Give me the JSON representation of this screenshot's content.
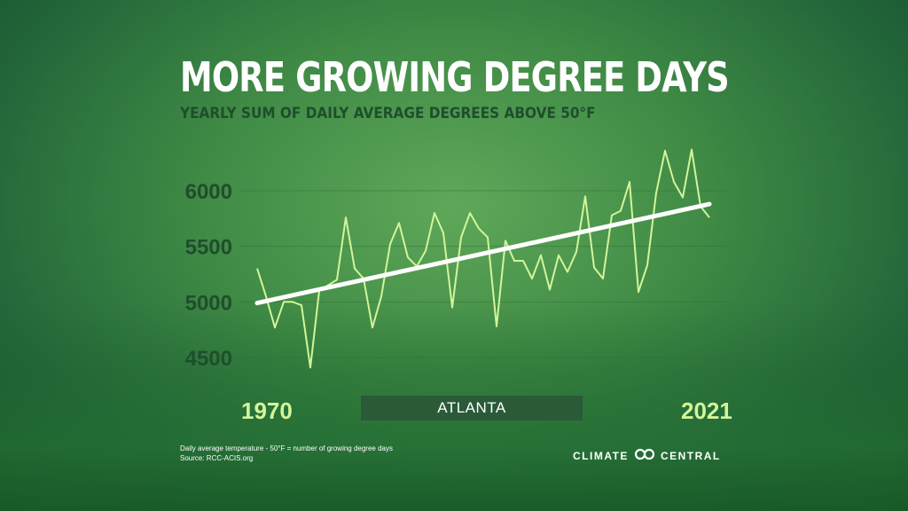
{
  "title": "MORE GROWING DEGREE DAYS",
  "subtitle": "YEARLY SUM OF DAILY AVERAGE DEGREES ABOVE 50°F",
  "location": "ATLANTA",
  "footnote": {
    "line1": "Daily average temperature - 50°F = number of growing degree days",
    "line2": "Source: RCC-ACIS.org"
  },
  "brand": {
    "word1": "CLIMATE",
    "word2": "CENTRAL",
    "icon": "climate-central-logo-icon"
  },
  "colors": {
    "line": "#d3f59a",
    "trend": "#ffffff",
    "axis_text": "#1f4e2c",
    "year_text": "#d3f59a"
  },
  "chart_data": {
    "type": "line",
    "xlim": [
      1970,
      2021
    ],
    "ylim": [
      4400,
      6400
    ],
    "yticks": [
      4500,
      5000,
      5500,
      6000
    ],
    "ytick_labels": [
      "4500",
      "5000",
      "5500",
      "6000"
    ],
    "x_start_label": "1970",
    "x_end_label": "2021",
    "grid": true,
    "series": [
      {
        "x": [
          1970,
          1971,
          1972,
          1973,
          1974,
          1975,
          1976,
          1977,
          1978,
          1979,
          1980,
          1981,
          1982,
          1983,
          1984,
          1985,
          1986,
          1987,
          1988,
          1989,
          1990,
          1991,
          1992,
          1993,
          1994,
          1995,
          1996,
          1997,
          1998,
          1999,
          2000,
          2001,
          2002,
          2003,
          2004,
          2005,
          2006,
          2007,
          2008,
          2009,
          2010,
          2011,
          2012,
          2013,
          2014,
          2015,
          2016,
          2017,
          2018,
          2019,
          2020,
          2021
        ],
        "values": [
          5300,
          5050,
          4770,
          5000,
          5000,
          4970,
          4410,
          5100,
          5150,
          5200,
          5760,
          5300,
          5210,
          4770,
          5050,
          5520,
          5710,
          5400,
          5320,
          5460,
          5800,
          5620,
          4950,
          5580,
          5800,
          5660,
          5580,
          4780,
          5550,
          5370,
          5370,
          5210,
          5420,
          5110,
          5420,
          5270,
          5450,
          5950,
          5310,
          5210,
          5780,
          5820,
          6080,
          5090,
          5330,
          5980,
          6360,
          6080,
          5940,
          6370,
          5860,
          5760
        ]
      },
      {
        "x": [
          1970,
          2021
        ],
        "values": [
          4990,
          5880
        ]
      }
    ]
  }
}
